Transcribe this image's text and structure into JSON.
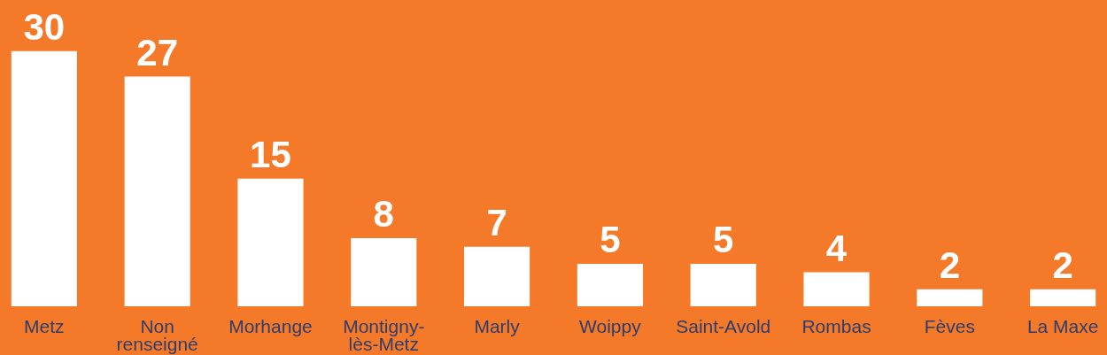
{
  "chart_data": {
    "type": "bar",
    "categories": [
      "Metz",
      "Non renseigné",
      "Morhange",
      "Montigny-lès-Metz",
      "Marly",
      "Woippy",
      "Saint-Avold",
      "Rombas",
      "Fèves",
      "La Maxe"
    ],
    "values": [
      30,
      27,
      15,
      8,
      7,
      5,
      5,
      4,
      2,
      2
    ],
    "color": "#ffffff",
    "data_labels": true
  }
}
